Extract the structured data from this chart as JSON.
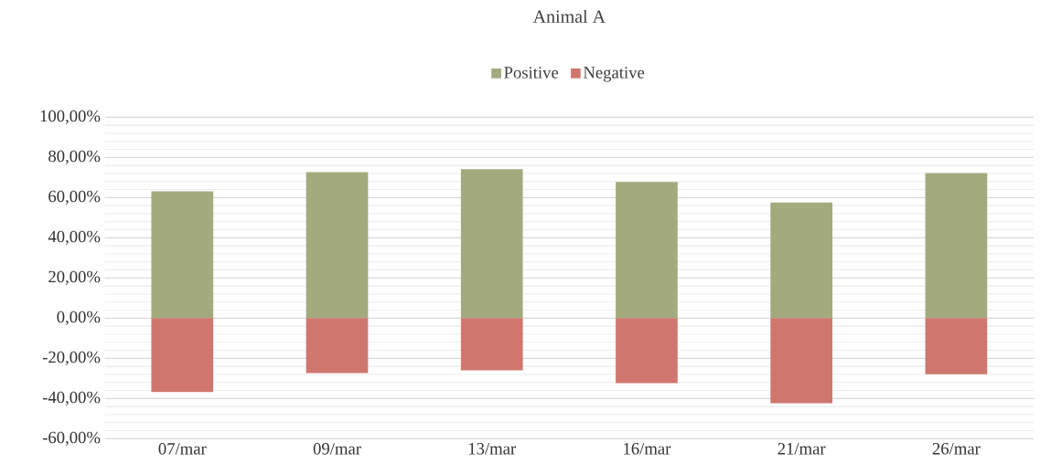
{
  "chart_data": {
    "type": "bar",
    "title": "Animal A",
    "stacked": true,
    "categories": [
      "07/mar",
      "09/mar",
      "13/mar",
      "16/mar",
      "21/mar",
      "26/mar"
    ],
    "series": [
      {
        "name": "Positive",
        "color": "#a3aa7e",
        "values": [
          63.1,
          72.6,
          74.1,
          67.8,
          57.5,
          72.2
        ]
      },
      {
        "name": "Negative",
        "color": "#cf776e",
        "values": [
          -36.8,
          -27.3,
          -26.0,
          -32.4,
          -42.4,
          -27.9
        ]
      }
    ],
    "ylim": [
      -60,
      100
    ],
    "yticks": [
      {
        "value": -60,
        "label": "-60,00%"
      },
      {
        "value": -40,
        "label": "-40,00%"
      },
      {
        "value": -20,
        "label": "-20,00%"
      },
      {
        "value": 0,
        "label": "0,00%"
      },
      {
        "value": 20,
        "label": "20,00%"
      },
      {
        "value": 40,
        "label": "40,00%"
      },
      {
        "value": 60,
        "label": "60,00%"
      },
      {
        "value": 80,
        "label": "80,00%"
      },
      {
        "value": 100,
        "label": "100,00%"
      }
    ],
    "grid": "y",
    "legend": "top"
  }
}
